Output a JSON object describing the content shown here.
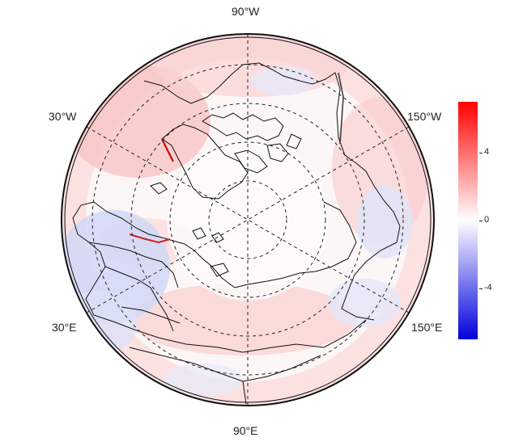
{
  "map": {
    "projection": "north-polar-stereographic",
    "graticule_style": "dashed",
    "longitude_labels": {
      "top": "90°W",
      "bottom": "90°E",
      "upper_left": "30°W",
      "upper_right": "150°W",
      "lower_left": "30°E",
      "lower_right": "150°E"
    },
    "colorbar": {
      "ticks": [
        "4",
        "0",
        "-4"
      ],
      "colors": {
        "max": "#ff0000",
        "mid": "#ffffff",
        "min": "#0000dd"
      }
    }
  }
}
